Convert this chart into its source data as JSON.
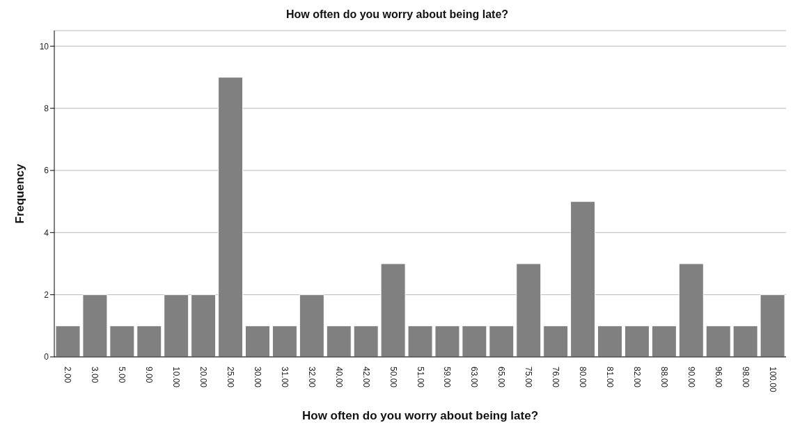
{
  "chart_data": {
    "type": "bar",
    "title": "How often do you worry about being late?",
    "xlabel": "How often do you worry about being late?",
    "ylabel": "Frequency",
    "categories": [
      "2.00",
      "3.00",
      "5.00",
      "9.00",
      "10.00",
      "20.00",
      "25.00",
      "30.00",
      "31.00",
      "32.00",
      "40.00",
      "42.00",
      "50.00",
      "51.00",
      "59.00",
      "63.00",
      "65.00",
      "75.00",
      "76.00",
      "80.00",
      "81.00",
      "82.00",
      "88.00",
      "90.00",
      "96.00",
      "98.00",
      "100.00"
    ],
    "values": [
      1,
      2,
      1,
      1,
      2,
      2,
      9,
      1,
      1,
      2,
      1,
      1,
      3,
      1,
      1,
      1,
      1,
      3,
      1,
      5,
      1,
      1,
      1,
      3,
      1,
      1,
      2
    ],
    "color": "#808080",
    "ylim": [
      0,
      10.5
    ],
    "yticks": [
      0,
      2,
      4,
      6,
      8,
      10
    ],
    "grid": "y"
  }
}
